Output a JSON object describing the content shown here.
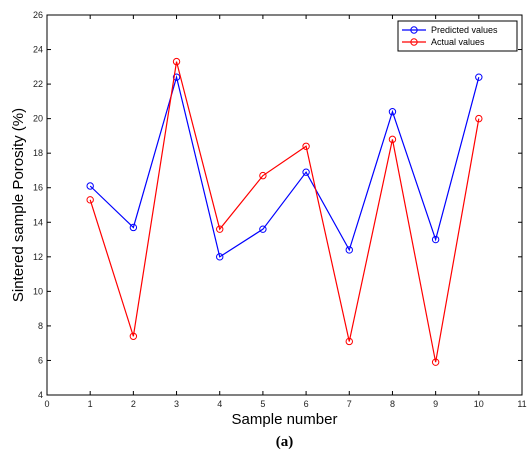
{
  "chart_data": {
    "type": "line",
    "title": "",
    "xlabel": "Sample number",
    "ylabel": "Sintered sample Porosity (%)",
    "xlim": [
      0,
      11
    ],
    "ylim": [
      4,
      26
    ],
    "x_ticks": [
      0,
      1,
      2,
      3,
      4,
      5,
      6,
      7,
      8,
      9,
      10,
      11
    ],
    "y_ticks": [
      4,
      6,
      8,
      10,
      12,
      14,
      16,
      18,
      20,
      22,
      24,
      26
    ],
    "grid": false,
    "legend_position": "top-right",
    "x": [
      1,
      2,
      3,
      4,
      5,
      6,
      7,
      8,
      9,
      10
    ],
    "series": [
      {
        "name": "Predicted values",
        "color": "#0000ff",
        "marker": "circle",
        "values": [
          16.1,
          13.7,
          22.4,
          12.0,
          13.6,
          16.9,
          12.4,
          20.4,
          13.0,
          22.4
        ]
      },
      {
        "name": "Actual values",
        "color": "#ff0000",
        "marker": "circle",
        "values": [
          15.3,
          7.4,
          23.3,
          13.6,
          16.7,
          18.4,
          7.1,
          18.8,
          5.9,
          20.0
        ]
      }
    ]
  },
  "caption": "(a)"
}
